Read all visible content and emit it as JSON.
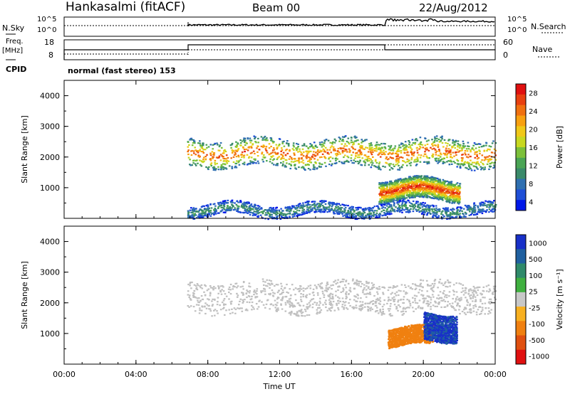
{
  "header": {
    "station": "Hankasalmi (fitACF)",
    "beam": "Beam 00",
    "date": "22/Aug/2012"
  },
  "noise_panel": {
    "left_label": "N.Sky",
    "right_label": "N.Search",
    "left_ticks": [
      "10^5",
      "10^0"
    ],
    "right_ticks": [
      "10^5",
      "10^0"
    ]
  },
  "freq_panel": {
    "left_label_line1": "Freq.",
    "left_label_line2": "[MHz]",
    "right_label": "Nave",
    "left_ticks": [
      "18",
      "8"
    ],
    "right_ticks": [
      "60",
      "0"
    ]
  },
  "cpid": {
    "label": "CPID",
    "value": "normal (fast stereo) 153"
  },
  "colors": {
    "power": [
      "#0018e8",
      "#1f4fd6",
      "#2f6fb0",
      "#3a8a6a",
      "#4aa455",
      "#7cc03a",
      "#c8d820",
      "#f0c818",
      "#f8a010",
      "#f07010",
      "#e84010",
      "#e01010"
    ],
    "velocity": [
      "#1830c8",
      "#2060a0",
      "#2f8a6a",
      "#40b040",
      "#c8c8c8",
      "#f8b020",
      "#f08010",
      "#e05010",
      "#e01010"
    ],
    "scatter_ground": "#c0c0c0"
  },
  "chart_data": [
    {
      "type": "heatmap",
      "panel": "power",
      "ylabel": "Slant Range [km]",
      "yticks": [
        "4000",
        "3000",
        "2000",
        "1000"
      ],
      "ylim": [
        0,
        4500
      ],
      "xlim": [
        "00:00",
        "24:00"
      ],
      "colorbar": {
        "label": "Power [dB]",
        "ticks": [
          "28",
          "24",
          "20",
          "16",
          "12",
          "8",
          "4"
        ],
        "range": [
          0,
          30
        ]
      },
      "features": [
        {
          "name": "main band",
          "time": [
            "06:50",
            "24:00"
          ],
          "range_km": [
            1700,
            2600
          ],
          "peak_dB": 26
        },
        {
          "name": "lower band",
          "time": [
            "17:30",
            "22:00"
          ],
          "range_km": [
            600,
            1300
          ],
          "peak_dB": 28
        },
        {
          "name": "near-range echoes",
          "time": [
            "06:50",
            "24:00"
          ],
          "range_km": [
            100,
            500
          ],
          "peak_dB": 10
        }
      ]
    },
    {
      "type": "heatmap",
      "panel": "velocity",
      "ylabel": "Slant Range [km]",
      "yticks": [
        "4000",
        "3000",
        "2000",
        "1000"
      ],
      "ylim": [
        0,
        4500
      ],
      "xlim": [
        "00:00",
        "24:00"
      ],
      "xlabel": "Time UT",
      "xticks": [
        "00:00",
        "04:00",
        "08:00",
        "12:00",
        "16:00",
        "20:00",
        "00:00"
      ],
      "colorbar": {
        "label": "Velocity [m s⁻¹]",
        "ticks": [
          "1000",
          "500",
          "100",
          "25",
          "-25",
          "-100",
          "-500",
          "-1000"
        ],
        "range": [
          -1000,
          1000
        ]
      },
      "features": [
        {
          "name": "ground scatter band",
          "time": [
            "06:50",
            "24:00"
          ],
          "range_km": [
            1700,
            2700
          ],
          "velocity": 0
        },
        {
          "name": "negative velocity patch",
          "time": [
            "18:00",
            "20:30"
          ],
          "range_km": [
            600,
            1200
          ],
          "velocity": -300
        },
        {
          "name": "positive velocity patch",
          "time": [
            "20:00",
            "21:50"
          ],
          "range_km": [
            800,
            1700
          ],
          "velocity": 600
        }
      ]
    }
  ]
}
